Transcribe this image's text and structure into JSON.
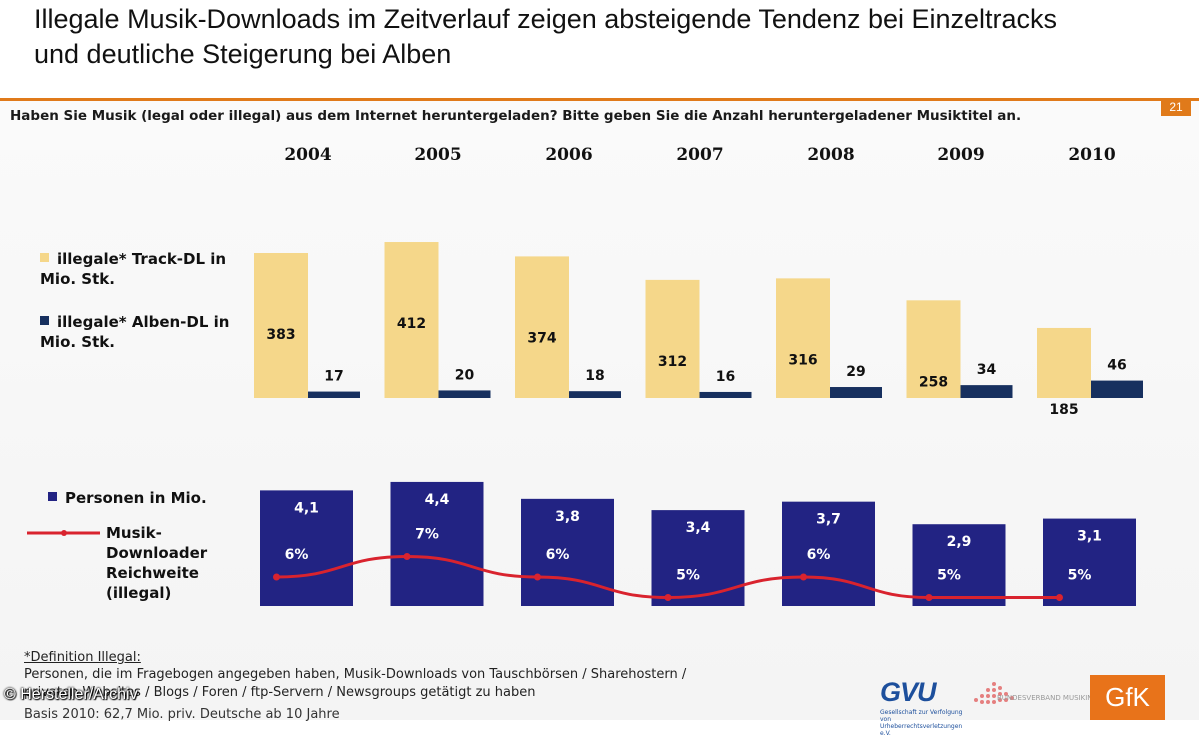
{
  "title": "Illegale Musik-Downloads im Zeitverlauf zeigen absteigende Tendenz bei Einzeltracks und deutliche Steigerung bei Alben",
  "page_number": "21",
  "question": "Haben Sie Musik (legal oder illegal) aus dem Internet heruntergeladen? Bitte geben Sie die Anzahl heruntergeladener Musiktitel an.",
  "legend": {
    "tracks": "illegale* Track-DL in Mio. Stk.",
    "albums": "illegale* Alben-DL in Mio. Stk.",
    "persons": "Personen in Mio.",
    "reach": "Musik-Downloader Reichweite (illegal)"
  },
  "colors": {
    "tracks": "#f5d78a",
    "albums": "#17305f",
    "persons": "#222383",
    "reach_line": "#d9232e",
    "accent": "#e07a1a"
  },
  "chart_data": [
    {
      "type": "bar",
      "categories": [
        "2004",
        "2005",
        "2006",
        "2007",
        "2008",
        "2009",
        "2010"
      ],
      "series": [
        {
          "name": "illegale* Track-DL in Mio. Stk.",
          "values": [
            383,
            412,
            374,
            312,
            316,
            258,
            185
          ]
        },
        {
          "name": "illegale* Alben-DL in Mio. Stk.",
          "values": [
            17,
            20,
            18,
            16,
            29,
            34,
            46
          ]
        }
      ],
      "value_labels": {
        "tracks": [
          "383",
          "412",
          "374",
          "312",
          "316",
          "258",
          "185"
        ],
        "albums": [
          "17",
          "20",
          "18",
          "16",
          "29",
          "34",
          "46"
        ]
      }
    },
    {
      "type": "bar",
      "categories": [
        "2004",
        "2005",
        "2006",
        "2007",
        "2008",
        "2009",
        "2010"
      ],
      "series": [
        {
          "name": "Personen in Mio.",
          "values": [
            4.1,
            4.4,
            3.8,
            3.4,
            3.7,
            2.9,
            3.1
          ]
        }
      ],
      "value_labels": [
        "4,1",
        "4,4",
        "3,8",
        "3,4",
        "3,7",
        "2,9",
        "3,1"
      ]
    },
    {
      "type": "line",
      "categories": [
        "2004",
        "2005",
        "2006",
        "2007",
        "2008",
        "2009",
        "2010"
      ],
      "series": [
        {
          "name": "Musik-Downloader Reichweite (illegal)",
          "values": [
            6,
            7,
            6,
            5,
            6,
            5,
            5
          ]
        }
      ],
      "value_labels": [
        "6%",
        "7%",
        "6%",
        "5%",
        "6%",
        "5%",
        "5%"
      ]
    }
  ],
  "footer": {
    "definition_heading": "*Definition Illegal:",
    "definition_line1": "Personen, die im Fragebogen angegeben haben, Musik-Downloads von Tauschbörsen / Sharehostern /",
    "definition_line2": "privaten Websites / Blogs / Foren / ftp-Servern / Newsgroups getätigt zu haben",
    "basis": "Basis 2010: 62,7 Mio. priv. Deutsche ab 10 Jahre"
  },
  "credit": "© Hersteller/Archiv",
  "logos": {
    "gvu": "GVU",
    "gvu_sub": "Gesellschaft zur Verfolgung von Urheberrechtsverletzungen e.V.",
    "bvmi": "BUNDESVERBAND MUSIKINDUSTRIE",
    "gfk": "GfK"
  }
}
